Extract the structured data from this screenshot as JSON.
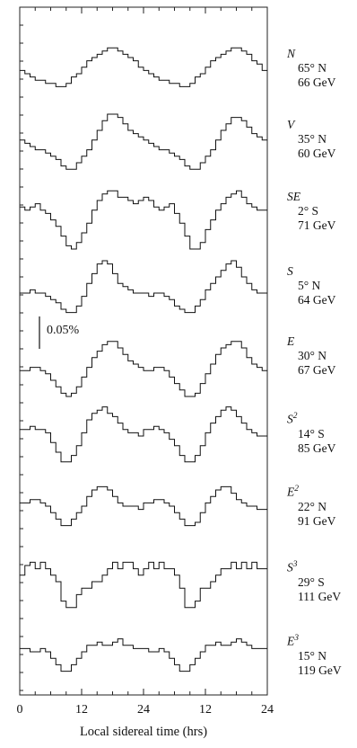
{
  "chart_data": {
    "type": "line",
    "step": true,
    "xlabel": "Local sidereal time (hrs)",
    "xlim": [
      0,
      24
    ],
    "x_ticks": [
      0,
      6,
      12,
      18,
      24
    ],
    "x_tick_labels": [
      "0",
      "12",
      "24",
      "12",
      "24"
    ],
    "bins": 48,
    "scale_bar_label": "0.05%",
    "scale_bar_value": 0.05,
    "series": [
      {
        "name": "N",
        "sup": "",
        "lat": "65° N",
        "energy": "66 GeV",
        "values": [
          0.005,
          0.0,
          -0.005,
          -0.01,
          -0.01,
          -0.015,
          -0.015,
          -0.02,
          -0.02,
          -0.015,
          -0.005,
          0.0,
          0.01,
          0.02,
          0.025,
          0.03,
          0.035,
          0.04,
          0.04,
          0.035,
          0.03,
          0.025,
          0.02,
          0.01,
          0.005,
          0.0,
          -0.005,
          -0.01,
          -0.01,
          -0.015,
          -0.015,
          -0.02,
          -0.02,
          -0.015,
          -0.005,
          0.0,
          0.01,
          0.02,
          0.025,
          0.03,
          0.035,
          0.04,
          0.04,
          0.035,
          0.03,
          0.02,
          0.015,
          0.005
        ]
      },
      {
        "name": "V",
        "sup": "",
        "lat": "35° N",
        "energy": "60 GeV",
        "values": [
          0.01,
          0.005,
          0.0,
          -0.005,
          -0.005,
          -0.01,
          -0.015,
          -0.02,
          -0.03,
          -0.035,
          -0.035,
          -0.025,
          -0.015,
          -0.005,
          0.01,
          0.025,
          0.04,
          0.05,
          0.05,
          0.045,
          0.035,
          0.025,
          0.02,
          0.015,
          0.01,
          0.005,
          0.0,
          -0.005,
          -0.005,
          -0.01,
          -0.015,
          -0.02,
          -0.03,
          -0.035,
          -0.035,
          -0.025,
          -0.015,
          -0.005,
          0.01,
          0.025,
          0.035,
          0.045,
          0.045,
          0.04,
          0.03,
          0.02,
          0.015,
          0.01
        ]
      },
      {
        "name": "SE",
        "sup": "",
        "lat": "2° S",
        "energy": "71 GeV",
        "values": [
          0.015,
          0.01,
          0.015,
          0.02,
          0.01,
          0.005,
          -0.005,
          -0.015,
          -0.03,
          -0.045,
          -0.05,
          -0.04,
          -0.025,
          -0.01,
          0.01,
          0.025,
          0.035,
          0.04,
          0.04,
          0.03,
          0.03,
          0.025,
          0.02,
          0.025,
          0.03,
          0.025,
          0.015,
          0.01,
          0.015,
          0.02,
          0.005,
          -0.01,
          -0.03,
          -0.05,
          -0.05,
          -0.04,
          -0.02,
          -0.005,
          0.01,
          0.02,
          0.03,
          0.035,
          0.04,
          0.03,
          0.02,
          0.015,
          0.01,
          0.01
        ]
      },
      {
        "name": "S",
        "sup": "",
        "lat": "5° N",
        "energy": "64 GeV",
        "values": [
          0.0,
          0.0,
          0.005,
          0.0,
          0.0,
          -0.005,
          -0.01,
          -0.015,
          -0.025,
          -0.03,
          -0.03,
          -0.02,
          -0.005,
          0.015,
          0.03,
          0.045,
          0.05,
          0.045,
          0.03,
          0.015,
          0.01,
          0.005,
          0.0,
          0.0,
          0.0,
          -0.005,
          0.0,
          0.0,
          -0.005,
          -0.01,
          -0.02,
          -0.025,
          -0.03,
          -0.03,
          -0.02,
          -0.01,
          0.005,
          0.015,
          0.025,
          0.035,
          0.045,
          0.05,
          0.04,
          0.025,
          0.015,
          0.005,
          0.0,
          0.0
        ]
      },
      {
        "name": "E",
        "sup": "",
        "lat": "30° N",
        "energy": "67 GeV",
        "values": [
          -0.01,
          -0.01,
          -0.005,
          -0.005,
          -0.01,
          -0.015,
          -0.025,
          -0.035,
          -0.045,
          -0.05,
          -0.045,
          -0.035,
          -0.02,
          -0.005,
          0.01,
          0.02,
          0.03,
          0.035,
          0.035,
          0.025,
          0.015,
          0.005,
          0.0,
          -0.005,
          -0.01,
          -0.01,
          -0.005,
          -0.005,
          -0.01,
          -0.02,
          -0.03,
          -0.04,
          -0.05,
          -0.05,
          -0.045,
          -0.03,
          -0.015,
          0.0,
          0.015,
          0.025,
          0.03,
          0.035,
          0.035,
          0.025,
          0.01,
          0.0,
          -0.005,
          -0.01
        ]
      },
      {
        "name": "S",
        "sup": "2",
        "lat": "14° S",
        "energy": "85 GeV",
        "values": [
          0.01,
          0.01,
          0.015,
          0.01,
          0.01,
          0.005,
          -0.01,
          -0.025,
          -0.04,
          -0.04,
          -0.03,
          -0.015,
          0.005,
          0.025,
          0.035,
          0.04,
          0.045,
          0.035,
          0.03,
          0.02,
          0.01,
          0.005,
          0.005,
          0.0,
          0.01,
          0.01,
          0.015,
          0.01,
          0.005,
          -0.005,
          -0.015,
          -0.03,
          -0.04,
          -0.04,
          -0.03,
          -0.015,
          0.005,
          0.02,
          0.03,
          0.04,
          0.045,
          0.04,
          0.03,
          0.02,
          0.01,
          0.005,
          0.0,
          0.0
        ]
      },
      {
        "name": "E",
        "sup": "2",
        "lat": "22° N",
        "energy": "91 GeV",
        "values": [
          0.005,
          0.005,
          0.01,
          0.01,
          0.005,
          0.0,
          -0.01,
          -0.02,
          -0.03,
          -0.03,
          -0.02,
          -0.01,
          0.0,
          0.015,
          0.025,
          0.03,
          0.03,
          0.025,
          0.015,
          0.005,
          0.0,
          0.0,
          0.0,
          -0.005,
          0.005,
          0.005,
          0.01,
          0.01,
          0.005,
          0.0,
          -0.01,
          -0.02,
          -0.03,
          -0.03,
          -0.025,
          -0.01,
          0.005,
          0.015,
          0.025,
          0.03,
          0.03,
          0.02,
          0.01,
          0.005,
          0.0,
          0.0,
          -0.005,
          -0.005
        ]
      },
      {
        "name": "S",
        "sup": "3",
        "lat": "29° S",
        "energy": "111 GeV",
        "values": [
          0.01,
          0.025,
          0.03,
          0.02,
          0.03,
          0.02,
          0.01,
          0.0,
          -0.03,
          -0.04,
          -0.04,
          -0.02,
          -0.01,
          -0.01,
          0.0,
          0.0,
          0.01,
          0.02,
          0.03,
          0.02,
          0.03,
          0.03,
          0.02,
          0.01,
          0.02,
          0.03,
          0.02,
          0.03,
          0.02,
          0.02,
          0.01,
          -0.01,
          -0.04,
          -0.04,
          -0.03,
          -0.01,
          -0.01,
          0.0,
          0.01,
          0.02,
          0.02,
          0.03,
          0.02,
          0.03,
          0.02,
          0.03,
          0.02,
          0.02
        ]
      },
      {
        "name": "E",
        "sup": "3",
        "lat": "15° N",
        "energy": "119 GeV",
        "values": [
          0.005,
          0.005,
          0.0,
          0.0,
          0.005,
          0.0,
          -0.01,
          -0.02,
          -0.03,
          -0.03,
          -0.02,
          -0.01,
          0.0,
          0.01,
          0.01,
          0.015,
          0.01,
          0.01,
          0.015,
          0.02,
          0.01,
          0.01,
          0.005,
          0.005,
          0.005,
          0.0,
          0.0,
          0.005,
          0.0,
          -0.01,
          -0.02,
          -0.03,
          -0.03,
          -0.02,
          -0.01,
          0.0,
          0.01,
          0.01,
          0.015,
          0.01,
          0.01,
          0.015,
          0.02,
          0.015,
          0.01,
          0.005,
          0.005,
          0.005
        ]
      }
    ]
  }
}
